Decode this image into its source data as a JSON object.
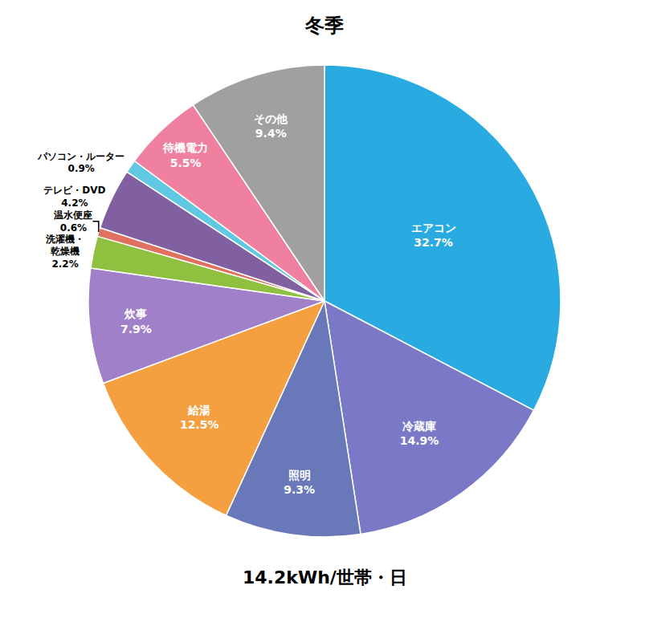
{
  "chart_data": {
    "type": "pie",
    "title": "冬季",
    "subtitle": "14.2kWh/世帯・日",
    "categories": [
      "エアコン\n32.7%",
      "冷蔵庫\n14.9%",
      "照明\n9.3%",
      "給湯\n12.5%",
      "炊事\n7.9%",
      "洗濯機・\n乾燥機\n2.2%",
      "温水便座\n0.6%",
      "テレビ・DVD\n4.2%",
      "パソコン・ルーター\n0.9%",
      "待機電力\n5.5%",
      "その他\n9.4%"
    ],
    "values": [
      32.7,
      14.9,
      9.3,
      12.5,
      7.9,
      2.2,
      0.6,
      4.2,
      0.9,
      5.5,
      9.4
    ],
    "colors": [
      "#29abe2",
      "#7b78c8",
      "#6878b8",
      "#f5a040",
      "#a080c8",
      "#90c040",
      "#e07060",
      "#8060a0",
      "#60c8e0",
      "#f080a0",
      "#a0a0a0"
    ],
    "data_labels": true
  }
}
